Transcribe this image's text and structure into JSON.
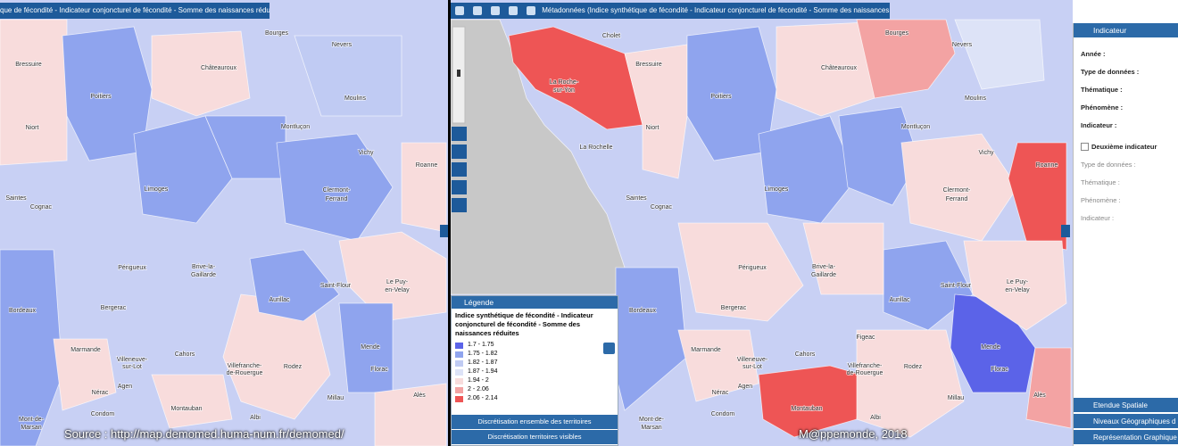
{
  "left_map": {
    "title": "que de fécondité - Indicateur conjoncturel de fécondité - Somme des naissances réduites)",
    "labels": [
      "Bourges",
      "Nevers",
      "Bressuire",
      "Châteauroux",
      "Poitiers",
      "Moulins",
      "Niort",
      "Montluçon",
      "Vichy",
      "Roanne",
      "Limoges",
      "Saintes",
      "Cognac",
      "Clermont-",
      "Ferrand",
      "Périgueux",
      "Brive-la-",
      "Gaillarde",
      "Saint-Flour",
      "Le Puy-",
      "en-Velay",
      "Bergerac",
      "Bordeaux",
      "Aurillac",
      "Marmande",
      "Mende",
      "Villeneuve-",
      "sur-Lot",
      "Cahors",
      "Villefranche-",
      "de-Rouergue",
      "Rodez",
      "Florac",
      "Agen",
      "Nérac",
      "Millau",
      "Alès",
      "Condom",
      "Montauban",
      "Albi",
      "Mont-de-",
      "Marsan"
    ]
  },
  "right_map": {
    "title": "Métadonnées (Indice synthétique de fécondité - Indicateur conjoncturel de fécondité - Somme des naissances réduites)",
    "labels": [
      "Bourges",
      "Nevers",
      "Bressuire",
      "Châteauroux",
      "Poitiers",
      "Moulins",
      "Niort",
      "Montluçon",
      "Vichy",
      "Roanne",
      "Limoges",
      "Saintes",
      "Cognac",
      "Clermont-",
      "Ferrand",
      "Périgueux",
      "Brive-la-",
      "Gaillarde",
      "Saint-Flour",
      "Le Puy-",
      "en-Velay",
      "Bergerac",
      "Bordeaux",
      "Aurillac",
      "Marmande",
      "Mende",
      "Villeneuve-",
      "sur-Lot",
      "Cahors",
      "Villefranche-",
      "de-Rouergue",
      "Rodez",
      "Florac",
      "Agen",
      "Nérac",
      "Millau",
      "Alès",
      "Condom",
      "Montauban",
      "Albi",
      "Mont-de-",
      "Marsan",
      "Cholet",
      "La Roche-",
      "sur-Yon",
      "La Rochelle",
      "Figeac"
    ]
  },
  "legend": {
    "header": "Légende",
    "title": "Indice synthétique de fécondité - Indicateur conjoncturel de fécondité - Somme des naissances réduites",
    "classes": [
      {
        "label": "1.7 - 1.75",
        "color": "#5b63e8"
      },
      {
        "label": "1.75 - 1.82",
        "color": "#8fa4ee"
      },
      {
        "label": "1.82 - 1.87",
        "color": "#c0cbf3"
      },
      {
        "label": "1.87 - 1.94",
        "color": "#dde3f7"
      },
      {
        "label": "1.94 - 2",
        "color": "#f8dcdc"
      },
      {
        "label": "2 - 2.06",
        "color": "#f3a3a3"
      },
      {
        "label": "2.06 - 2.14",
        "color": "#ee5555"
      }
    ],
    "buttons": [
      "Discrétisation ensemble des territoires",
      "Discrétisation territoires visibles"
    ]
  },
  "side_panel": {
    "header": "Indicateur",
    "fields": [
      "Année :",
      "Type de données :",
      "Thématique :",
      "Phénomène :",
      "Indicateur :"
    ],
    "second_checkbox": "Deuxième indicateur",
    "second_fields": [
      "Type de données :",
      "Thématique :",
      "Phénomène :",
      "Indicateur :"
    ],
    "sections": [
      "Etendue Spatiale",
      "Niveaux Géographiques d",
      "Représentation Graphique"
    ]
  },
  "footer": {
    "source": "Source : http://map.demomed.huma-num.fr/demomed/",
    "credit": "M@ppemonde, 2018"
  }
}
